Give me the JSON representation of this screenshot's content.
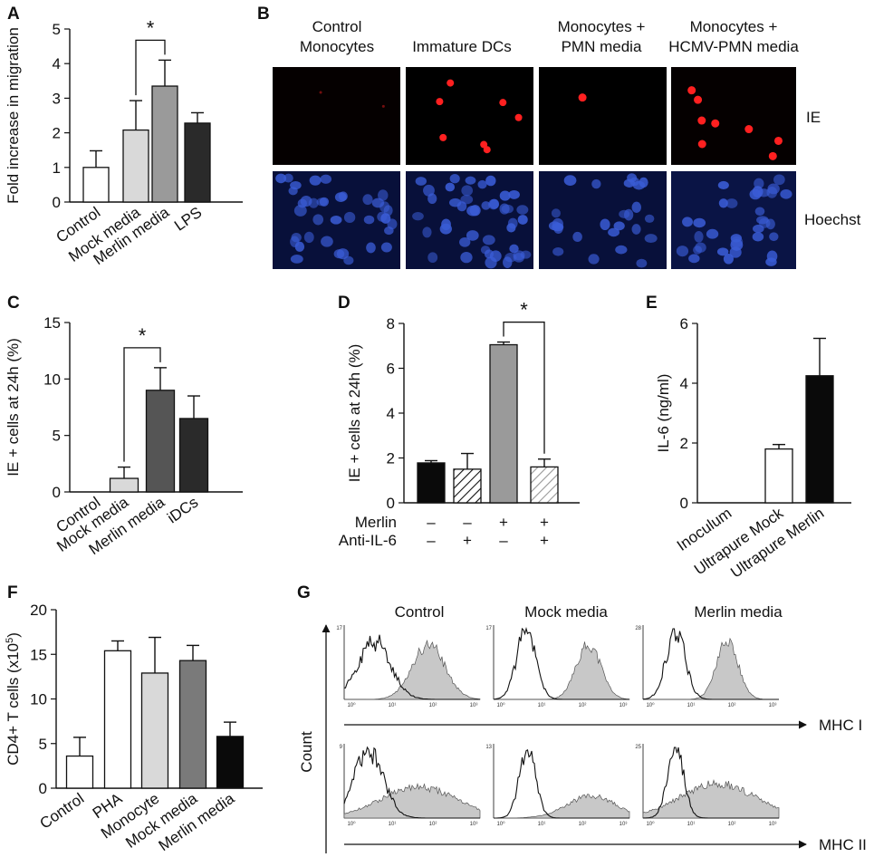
{
  "panel_labels": {
    "a": "A",
    "b": "B",
    "c": "C",
    "d": "D",
    "e": "E",
    "f": "F",
    "g": "G"
  },
  "colors": {
    "white": "#ffffff",
    "light_gray": "#d9d9d9",
    "mid_gray": "#9a9a9a",
    "dark_gray": "#6a6a6a",
    "near_black": "#2a2a2a",
    "black": "#0a0a0a",
    "fluor_red": "#ff2020",
    "hoechst_blue": "#3a5cd6",
    "histogram_fill": "#c8c8c8"
  },
  "chart_data": [
    {
      "id": "A",
      "type": "bar",
      "ylabel": "Fold increase in migration",
      "ylim": [
        0,
        5
      ],
      "yticks": [
        "0",
        "1",
        "2",
        "3",
        "4",
        "5"
      ],
      "categories": [
        "Control",
        "Mock media",
        "Merlin media",
        "LPS"
      ],
      "values": [
        1.0,
        2.08,
        3.35,
        2.28
      ],
      "errors": [
        0.48,
        0.85,
        0.75,
        0.3
      ],
      "colors": [
        "#ffffff",
        "#d9d9d9",
        "#9a9a9a",
        "#2a2a2a"
      ],
      "significance": {
        "label": "*",
        "between": [
          1,
          2
        ]
      }
    },
    {
      "id": "C",
      "type": "bar",
      "ylabel": "IE + cells at 24h (%)",
      "ylim": [
        0,
        15
      ],
      "yticks": [
        "0",
        "5",
        "10",
        "15"
      ],
      "categories": [
        "Control",
        "Mock media",
        "Merlin media",
        "iDCs"
      ],
      "values": [
        0.0,
        1.2,
        9.0,
        6.5
      ],
      "errors": [
        0.0,
        1.0,
        2.0,
        2.0
      ],
      "colors": [
        "#ffffff",
        "#d9d9d9",
        "#555555",
        "#2a2a2a"
      ],
      "significance": {
        "label": "*",
        "between": [
          1,
          2
        ]
      }
    },
    {
      "id": "D",
      "type": "bar",
      "ylabel": "IE + cells at 24h (%)",
      "ylim": [
        0,
        8
      ],
      "yticks": [
        "0",
        "2",
        "4",
        "6",
        "8"
      ],
      "values": [
        1.78,
        1.5,
        7.05,
        1.6
      ],
      "errors": [
        0.1,
        0.7,
        0.12,
        0.35
      ],
      "colors": [
        "#0a0a0a",
        "hatch",
        "#9a9a9a",
        "hatch-light"
      ],
      "treatment_rows": [
        {
          "label": "Merlin",
          "signs": [
            "–",
            "–",
            "+",
            "+"
          ]
        },
        {
          "label": "Anti-IL-6",
          "signs": [
            "–",
            "+",
            "–",
            "+"
          ]
        }
      ],
      "significance": {
        "label": "*",
        "between": [
          2,
          3
        ]
      }
    },
    {
      "id": "E",
      "type": "bar",
      "ylabel": "IL-6 (ng/ml)",
      "ylim": [
        0,
        6
      ],
      "yticks": [
        "0",
        "2",
        "4",
        "6"
      ],
      "categories": [
        "Inoculum",
        "Ultrapure Mock",
        "Ultrapure Merlin"
      ],
      "values": [
        0.0,
        1.8,
        4.25
      ],
      "errors": [
        0.0,
        0.15,
        1.25
      ],
      "colors": [
        "#ffffff",
        "#ffffff",
        "#0a0a0a"
      ]
    },
    {
      "id": "F",
      "type": "bar",
      "ylabel": "CD4+ T cells  (x10",
      "ylabel_sup": "5",
      "ylabel_end": ")",
      "ylim": [
        0,
        20
      ],
      "yticks": [
        "0",
        "5",
        "10",
        "15",
        "20"
      ],
      "categories": [
        "Control",
        "PHA",
        "Monocyte",
        "Mock media",
        "Merlin media"
      ],
      "values": [
        3.6,
        15.4,
        12.9,
        14.3,
        5.8
      ],
      "errors": [
        2.1,
        1.1,
        4.0,
        1.7,
        1.6
      ],
      "colors": [
        "#ffffff",
        "#ffffff",
        "#d9d9d9",
        "#7a7a7a",
        "#0a0a0a"
      ]
    }
  ],
  "panel_b": {
    "columns": [
      "Control\nMonocytes",
      "Immature DCs",
      "Monocytes +\nPMN media",
      "Monocytes +\nHCMV-PMN media"
    ],
    "rows": [
      "IE",
      "Hoechst"
    ]
  },
  "panel_g": {
    "columns": [
      "Control",
      "Mock media",
      "Merlin media"
    ],
    "y_axis": "Count",
    "rows": [
      {
        "marker": "MHC I",
        "ymax": [
          "17",
          "17",
          "28"
        ]
      },
      {
        "marker": "MHC II",
        "ymax": [
          "9",
          "13",
          "25"
        ]
      }
    ],
    "x_ticks": [
      "10⁰",
      "10¹",
      "10²",
      "10³"
    ]
  }
}
